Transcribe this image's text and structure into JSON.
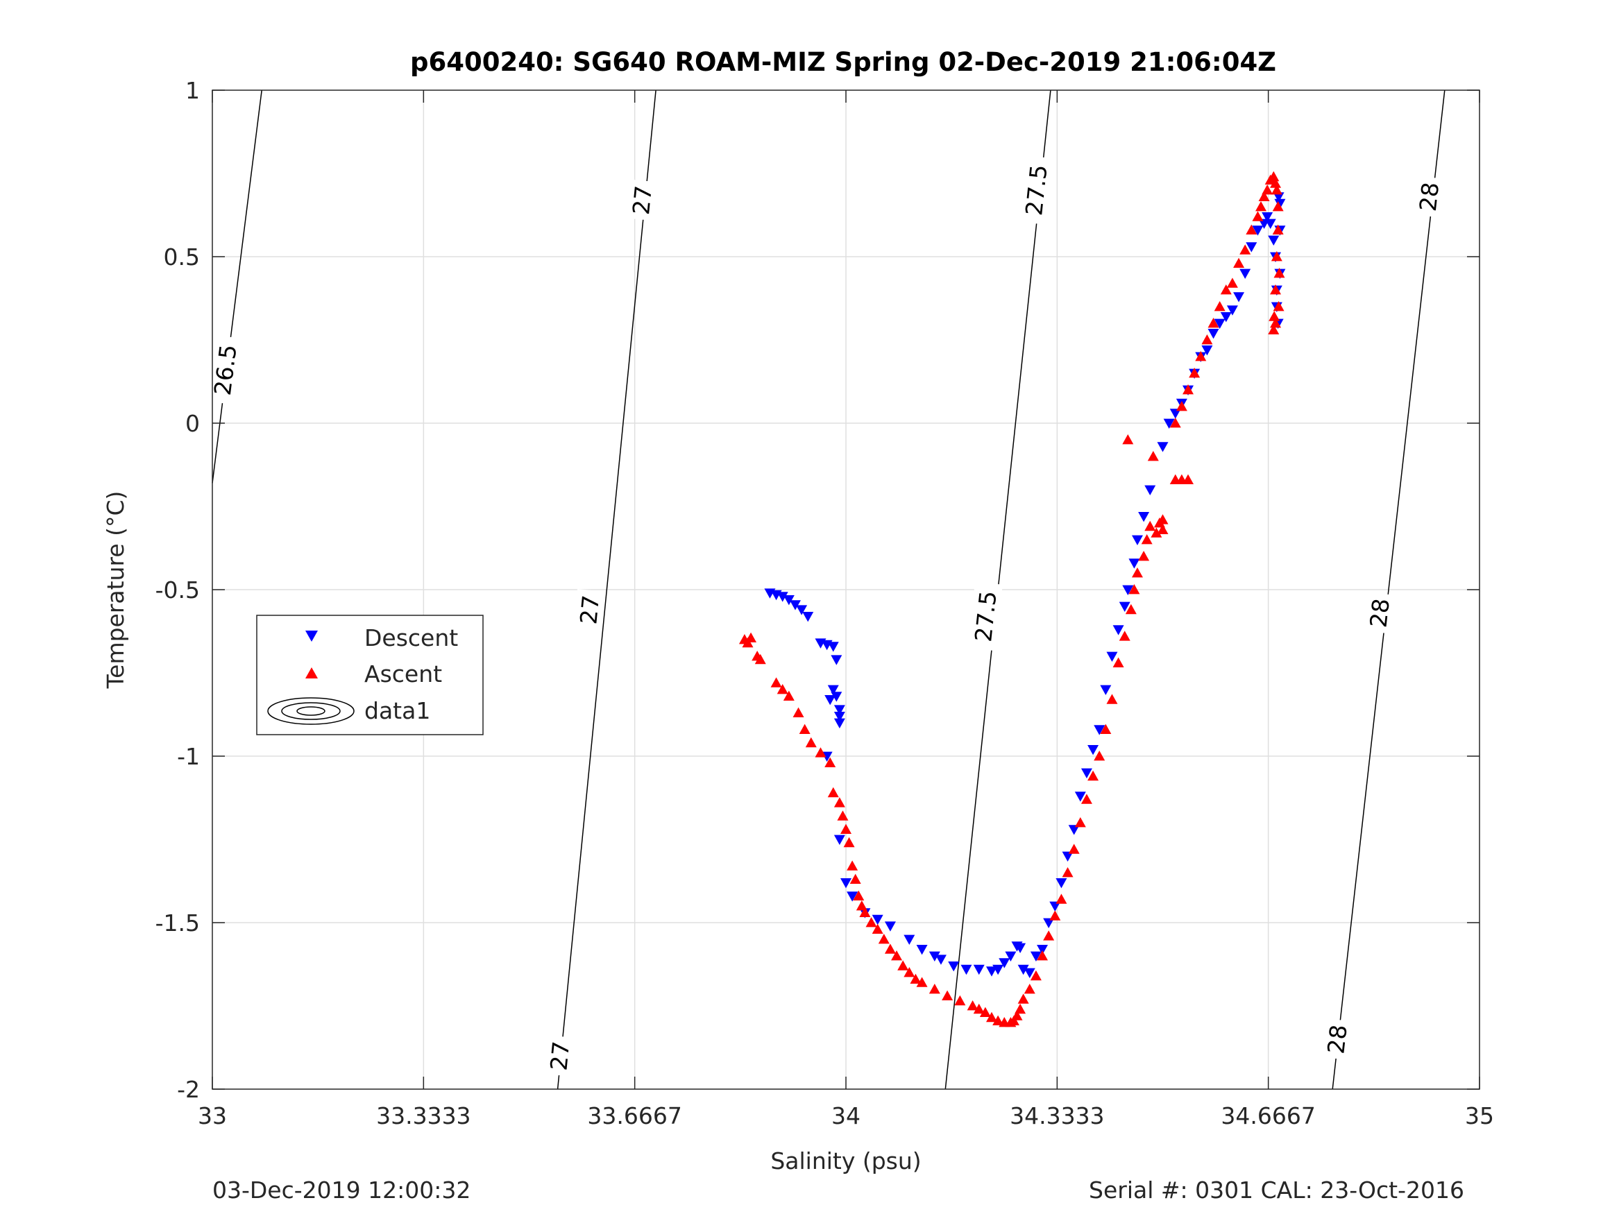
{
  "chart_data": {
    "type": "scatter",
    "title": "p6400240: SG640 ROAM-MIZ Spring 02-Dec-2019 21:06:04Z",
    "xlabel": "Salinity (psu)",
    "ylabel": "Temperature (°C)",
    "xlim": [
      33,
      35
    ],
    "ylim": [
      -2,
      1
    ],
    "x_tick_labels": [
      "33",
      "33.3333",
      "33.6667",
      "34",
      "34.3333",
      "34.6667",
      "35"
    ],
    "y_tick_labels": [
      "-2",
      "-1.5",
      "-1",
      "-0.5",
      "0",
      "0.5",
      "1"
    ],
    "grid": true,
    "legend_position": "left-middle",
    "footer_left": "03-Dec-2019 12:00:32",
    "footer_right": "Serial #: 0301  CAL: 23-Oct-2016",
    "density_contours": [
      {
        "sigma": 26.5,
        "label": "26.5",
        "points": [
          [
            33.078,
            1.0
          ],
          [
            33.0,
            -0.18
          ]
        ]
      },
      {
        "sigma": 27,
        "label": "27",
        "points": [
          [
            33.7,
            1.0
          ],
          [
            33.545,
            -2.0
          ]
        ]
      },
      {
        "sigma": 27.5,
        "label": "27.5",
        "points": [
          [
            34.323,
            1.0
          ],
          [
            34.157,
            -2.0
          ]
        ]
      },
      {
        "sigma": 28,
        "label": "28",
        "points": [
          [
            34.945,
            1.0
          ],
          [
            34.768,
            -2.0
          ]
        ]
      }
    ],
    "contour_label_positions": [
      {
        "label": "26.5",
        "x": 33.02,
        "y": 0.16
      },
      {
        "label": "27",
        "x": 33.678,
        "y": 0.67
      },
      {
        "label": "27",
        "x": 33.595,
        "y": -0.56
      },
      {
        "label": "27",
        "x": 33.548,
        "y": -1.9
      },
      {
        "label": "27.5",
        "x": 34.3,
        "y": 0.7
      },
      {
        "label": "27.5",
        "x": 34.22,
        "y": -0.58
      },
      {
        "label": "28",
        "x": 34.92,
        "y": 0.68
      },
      {
        "label": "28",
        "x": 34.842,
        "y": -0.57
      },
      {
        "label": "28",
        "x": 34.775,
        "y": -1.85
      }
    ],
    "series": [
      {
        "name": "Descent",
        "marker": "triangle-down",
        "color": "#0000ff",
        "points": [
          [
            33.88,
            -0.51
          ],
          [
            33.89,
            -0.515
          ],
          [
            33.9,
            -0.52
          ],
          [
            33.91,
            -0.53
          ],
          [
            33.92,
            -0.545
          ],
          [
            33.93,
            -0.56
          ],
          [
            33.94,
            -0.58
          ],
          [
            33.96,
            -0.66
          ],
          [
            33.97,
            -0.665
          ],
          [
            33.98,
            -0.67
          ],
          [
            33.985,
            -0.71
          ],
          [
            33.98,
            -0.8
          ],
          [
            33.975,
            -0.83
          ],
          [
            33.985,
            -0.82
          ],
          [
            33.99,
            -0.86
          ],
          [
            33.99,
            -0.9
          ],
          [
            33.99,
            -0.88
          ],
          [
            33.97,
            -1.0
          ],
          [
            33.99,
            -1.25
          ],
          [
            34.0,
            -1.38
          ],
          [
            34.01,
            -1.42
          ],
          [
            34.03,
            -1.47
          ],
          [
            34.05,
            -1.49
          ],
          [
            34.07,
            -1.51
          ],
          [
            34.1,
            -1.55
          ],
          [
            34.12,
            -1.58
          ],
          [
            34.14,
            -1.6
          ],
          [
            34.15,
            -1.61
          ],
          [
            34.17,
            -1.63
          ],
          [
            34.19,
            -1.64
          ],
          [
            34.21,
            -1.64
          ],
          [
            34.23,
            -1.645
          ],
          [
            34.24,
            -1.64
          ],
          [
            34.25,
            -1.62
          ],
          [
            34.26,
            -1.6
          ],
          [
            34.27,
            -1.57
          ],
          [
            34.275,
            -1.575
          ],
          [
            34.28,
            -1.64
          ],
          [
            34.29,
            -1.65
          ],
          [
            34.3,
            -1.6
          ],
          [
            34.31,
            -1.58
          ],
          [
            34.32,
            -1.5
          ],
          [
            34.33,
            -1.45
          ],
          [
            34.34,
            -1.38
          ],
          [
            34.35,
            -1.3
          ],
          [
            34.36,
            -1.22
          ],
          [
            34.37,
            -1.12
          ],
          [
            34.38,
            -1.05
          ],
          [
            34.39,
            -0.98
          ],
          [
            34.4,
            -0.92
          ],
          [
            34.41,
            -0.8
          ],
          [
            34.42,
            -0.7
          ],
          [
            34.43,
            -0.62
          ],
          [
            34.44,
            -0.55
          ],
          [
            34.445,
            -0.5
          ],
          [
            34.455,
            -0.42
          ],
          [
            34.46,
            -0.35
          ],
          [
            34.47,
            -0.28
          ],
          [
            34.48,
            -0.2
          ],
          [
            34.5,
            -0.07
          ],
          [
            34.51,
            0.0
          ],
          [
            34.52,
            0.03
          ],
          [
            34.53,
            0.06
          ],
          [
            34.54,
            0.1
          ],
          [
            34.55,
            0.15
          ],
          [
            34.56,
            0.2
          ],
          [
            34.57,
            0.22
          ],
          [
            34.58,
            0.27
          ],
          [
            34.59,
            0.3
          ],
          [
            34.6,
            0.32
          ],
          [
            34.61,
            0.34
          ],
          [
            34.62,
            0.38
          ],
          [
            34.63,
            0.45
          ],
          [
            34.64,
            0.53
          ],
          [
            34.65,
            0.58
          ],
          [
            34.66,
            0.6
          ],
          [
            34.665,
            0.62
          ],
          [
            34.67,
            0.6
          ],
          [
            34.675,
            0.55
          ],
          [
            34.678,
            0.5
          ],
          [
            34.68,
            0.4
          ],
          [
            34.68,
            0.35
          ],
          [
            34.682,
            0.3
          ],
          [
            34.685,
            0.45
          ],
          [
            34.685,
            0.58
          ],
          [
            34.685,
            0.66
          ],
          [
            34.683,
            0.68
          ]
        ]
      },
      {
        "name": "Ascent",
        "marker": "triangle-up",
        "color": "#ff0000",
        "points": [
          [
            33.84,
            -0.65
          ],
          [
            33.845,
            -0.66
          ],
          [
            33.85,
            -0.645
          ],
          [
            33.86,
            -0.7
          ],
          [
            33.865,
            -0.71
          ],
          [
            33.89,
            -0.78
          ],
          [
            33.9,
            -0.8
          ],
          [
            33.91,
            -0.82
          ],
          [
            33.925,
            -0.87
          ],
          [
            33.935,
            -0.92
          ],
          [
            33.945,
            -0.96
          ],
          [
            33.96,
            -0.99
          ],
          [
            33.975,
            -1.02
          ],
          [
            33.98,
            -1.11
          ],
          [
            33.99,
            -1.14
          ],
          [
            33.995,
            -1.18
          ],
          [
            34.0,
            -1.22
          ],
          [
            34.005,
            -1.26
          ],
          [
            34.01,
            -1.33
          ],
          [
            34.015,
            -1.37
          ],
          [
            34.02,
            -1.42
          ],
          [
            34.025,
            -1.45
          ],
          [
            34.03,
            -1.47
          ],
          [
            34.04,
            -1.5
          ],
          [
            34.05,
            -1.52
          ],
          [
            34.06,
            -1.55
          ],
          [
            34.07,
            -1.58
          ],
          [
            34.08,
            -1.6
          ],
          [
            34.09,
            -1.63
          ],
          [
            34.1,
            -1.65
          ],
          [
            34.11,
            -1.67
          ],
          [
            34.12,
            -1.68
          ],
          [
            34.14,
            -1.7
          ],
          [
            34.16,
            -1.72
          ],
          [
            34.18,
            -1.735
          ],
          [
            34.2,
            -1.75
          ],
          [
            34.21,
            -1.76
          ],
          [
            34.22,
            -1.77
          ],
          [
            34.23,
            -1.785
          ],
          [
            34.24,
            -1.795
          ],
          [
            34.25,
            -1.8
          ],
          [
            34.26,
            -1.8
          ],
          [
            34.265,
            -1.795
          ],
          [
            34.27,
            -1.78
          ],
          [
            34.275,
            -1.76
          ],
          [
            34.28,
            -1.73
          ],
          [
            34.29,
            -1.7
          ],
          [
            34.3,
            -1.66
          ],
          [
            34.31,
            -1.6
          ],
          [
            34.32,
            -1.54
          ],
          [
            34.33,
            -1.48
          ],
          [
            34.34,
            -1.43
          ],
          [
            34.35,
            -1.35
          ],
          [
            34.36,
            -1.28
          ],
          [
            34.37,
            -1.2
          ],
          [
            34.38,
            -1.13
          ],
          [
            34.39,
            -1.06
          ],
          [
            34.4,
            -1.0
          ],
          [
            34.41,
            -0.92
          ],
          [
            34.42,
            -0.83
          ],
          [
            34.43,
            -0.72
          ],
          [
            34.44,
            -0.64
          ],
          [
            34.45,
            -0.56
          ],
          [
            34.455,
            -0.5
          ],
          [
            34.46,
            -0.45
          ],
          [
            34.47,
            -0.4
          ],
          [
            34.475,
            -0.35
          ],
          [
            34.48,
            -0.31
          ],
          [
            34.49,
            -0.33
          ],
          [
            34.5,
            -0.32
          ],
          [
            34.5,
            -0.29
          ],
          [
            34.495,
            -0.3
          ],
          [
            34.445,
            -0.05
          ],
          [
            34.485,
            -0.1
          ],
          [
            34.52,
            -0.17
          ],
          [
            34.53,
            -0.17
          ],
          [
            34.54,
            -0.17
          ],
          [
            34.52,
            0.0
          ],
          [
            34.53,
            0.05
          ],
          [
            34.54,
            0.1
          ],
          [
            34.55,
            0.15
          ],
          [
            34.56,
            0.2
          ],
          [
            34.57,
            0.25
          ],
          [
            34.58,
            0.3
          ],
          [
            34.59,
            0.35
          ],
          [
            34.6,
            0.4
          ],
          [
            34.61,
            0.42
          ],
          [
            34.62,
            0.48
          ],
          [
            34.63,
            0.52
          ],
          [
            34.64,
            0.58
          ],
          [
            34.65,
            0.62
          ],
          [
            34.655,
            0.65
          ],
          [
            34.66,
            0.68
          ],
          [
            34.665,
            0.7
          ],
          [
            34.67,
            0.73
          ],
          [
            34.675,
            0.74
          ],
          [
            34.678,
            0.72
          ],
          [
            34.68,
            0.7
          ],
          [
            34.682,
            0.65
          ],
          [
            34.682,
            0.58
          ],
          [
            34.68,
            0.5
          ],
          [
            34.678,
            0.4
          ],
          [
            34.676,
            0.32
          ],
          [
            34.675,
            0.28
          ],
          [
            34.678,
            0.3
          ],
          [
            34.683,
            0.35
          ],
          [
            34.684,
            0.45
          ]
        ]
      }
    ],
    "legend": [
      {
        "label": "Descent",
        "icon": "triangle-down"
      },
      {
        "label": "Ascent",
        "icon": "triangle-up"
      },
      {
        "label": "data1",
        "icon": "contour-ellipses"
      }
    ]
  }
}
